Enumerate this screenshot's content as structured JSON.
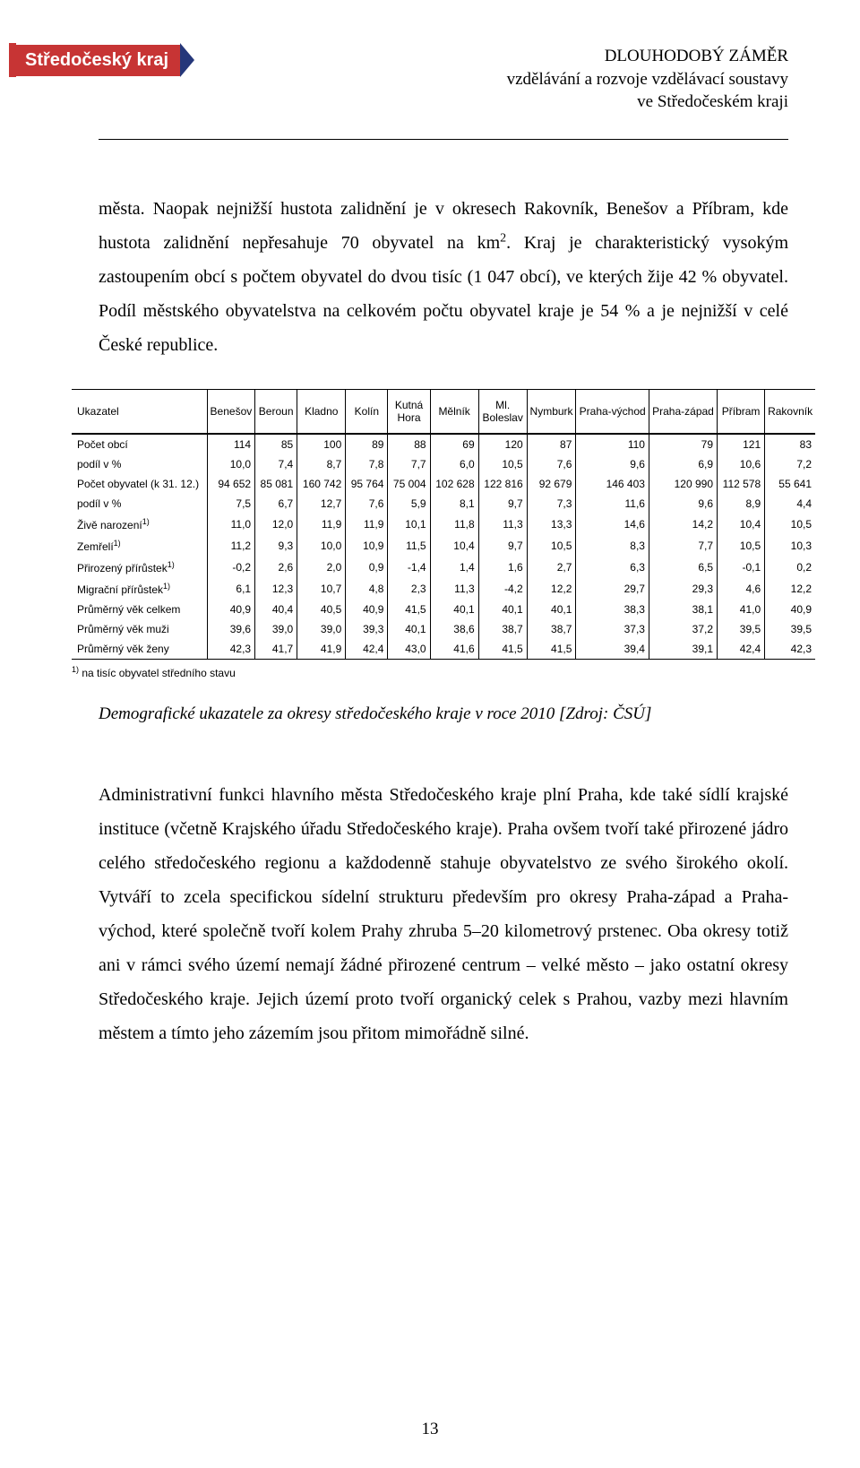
{
  "badge": {
    "label": "Středočeský kraj"
  },
  "header": {
    "line1": "DLOUHODOBÝ ZÁMĚR",
    "line2": "vzdělávání a rozvoje vzdělávací soustavy",
    "line3": "ve Středočeském kraji"
  },
  "para1_a": "města. Naopak nejnižší hustota zalidnění je v okresech Rakovník, Benešov a Příbram, kde hustota zalidnění nepřesahuje 70 obyvatel na km",
  "para1_b": ". Kraj je charakteristický vysokým zastoupením obcí s počtem obyvatel do dvou tisíc (1 047 obcí), ve kterých žije 42 % obyvatel. Podíl městského obyvatelstva na celkovém počtu obyvatel kraje je 54 % a je nejnižší v celé České republice.",
  "table": {
    "headers": [
      "Ukazatel",
      "Benešov",
      "Beroun",
      "Kladno",
      "Kolín",
      "Kutná Hora",
      "Mělník",
      "Ml. Boleslav",
      "Nymburk",
      "Praha-východ",
      "Praha-západ",
      "Příbram",
      "Rakovník"
    ],
    "rows": [
      {
        "label": "Počet obcí",
        "cells": [
          "114",
          "85",
          "100",
          "89",
          "88",
          "69",
          "120",
          "87",
          "110",
          "79",
          "121",
          "83"
        ]
      },
      {
        "label": "podíl v %",
        "cells": [
          "10,0",
          "7,4",
          "8,7",
          "7,8",
          "7,7",
          "6,0",
          "10,5",
          "7,6",
          "9,6",
          "6,9",
          "10,6",
          "7,2"
        ]
      },
      {
        "label": "Počet obyvatel (k 31. 12.)",
        "cells": [
          "94 652",
          "85 081",
          "160 742",
          "95 764",
          "75 004",
          "102 628",
          "122 816",
          "92 679",
          "146 403",
          "120 990",
          "112 578",
          "55 641"
        ]
      },
      {
        "label": "podíl v %",
        "cells": [
          "7,5",
          "6,7",
          "12,7",
          "7,6",
          "5,9",
          "8,1",
          "9,7",
          "7,3",
          "11,6",
          "9,6",
          "8,9",
          "4,4"
        ]
      },
      {
        "label": "Živě narození",
        "sup": "1)",
        "cells": [
          "11,0",
          "12,0",
          "11,9",
          "11,9",
          "10,1",
          "11,8",
          "11,3",
          "13,3",
          "14,6",
          "14,2",
          "10,4",
          "10,5"
        ]
      },
      {
        "label": "Zemřelí",
        "sup": "1)",
        "cells": [
          "11,2",
          "9,3",
          "10,0",
          "10,9",
          "11,5",
          "10,4",
          "9,7",
          "10,5",
          "8,3",
          "7,7",
          "10,5",
          "10,3"
        ]
      },
      {
        "label": "Přirozený přírůstek",
        "sup": "1)",
        "cells": [
          "-0,2",
          "2,6",
          "2,0",
          "0,9",
          "-1,4",
          "1,4",
          "1,6",
          "2,7",
          "6,3",
          "6,5",
          "-0,1",
          "0,2"
        ]
      },
      {
        "label": "Migrační přírůstek",
        "sup": "1)",
        "cells": [
          "6,1",
          "12,3",
          "10,7",
          "4,8",
          "2,3",
          "11,3",
          "-4,2",
          "12,2",
          "29,7",
          "29,3",
          "4,6",
          "12,2"
        ]
      },
      {
        "label": "Průměrný věk celkem",
        "cells": [
          "40,9",
          "40,4",
          "40,5",
          "40,9",
          "41,5",
          "40,1",
          "40,1",
          "40,1",
          "38,3",
          "38,1",
          "41,0",
          "40,9"
        ]
      },
      {
        "label": "Průměrný věk muži",
        "cells": [
          "39,6",
          "39,0",
          "39,0",
          "39,3",
          "40,1",
          "38,6",
          "38,7",
          "38,7",
          "37,3",
          "37,2",
          "39,5",
          "39,5"
        ]
      },
      {
        "label": "Průměrný věk ženy",
        "cells": [
          "42,3",
          "41,7",
          "41,9",
          "42,4",
          "43,0",
          "41,6",
          "41,5",
          "41,5",
          "39,4",
          "39,1",
          "42,4",
          "42,3"
        ]
      }
    ],
    "footnote_sup": "1)",
    "footnote": " na tisíc obyvatel středního stavu"
  },
  "caption": "Demografické ukazatele za okresy středočeského kraje v roce 2010 [Zdroj: ČSÚ]",
  "para2": "Administrativní funkci hlavního města Středočeského kraje plní Praha, kde také sídlí krajské instituce (včetně Krajského úřadu Středočeského kraje). Praha ovšem tvoří také přirozené jádro celého středočeského regionu a každodenně stahuje obyvatelstvo ze svého širokého okolí. Vytváří to zcela specifickou sídelní strukturu především pro okresy Praha-západ a Praha-východ, které společně tvoří kolem Prahy zhruba 5–20 kilometrový prstenec. Oba okresy totiž ani v rámci svého území nemají žádné přirozené centrum – velké město – jako ostatní okresy Středočeského kraje. Jejich území proto tvoří organický celek s Prahou, vazby mezi hlavním městem a tímto jeho zázemím jsou přitom mimořádně silné.",
  "pagenum": "13",
  "colors": {
    "badge_bg": "#c73434",
    "badge_text": "#ffffff",
    "chevron": "#25377a",
    "text": "#000000",
    "background": "#ffffff"
  }
}
